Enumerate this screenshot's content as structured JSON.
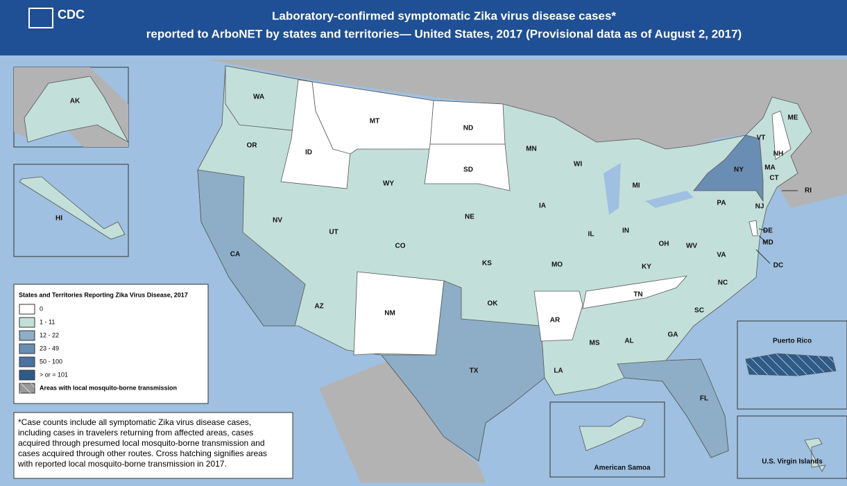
{
  "header": {
    "logo": "CDC",
    "title_lines": [
      "Laboratory-confirmed symptomatic Zika virus disease cases*",
      "reported to ArboNET by states and territories— United States, 2017 (Provisional data as of August 2, 2017)"
    ]
  },
  "legend": {
    "title": "States and Territories Reporting Zika Virus Disease, 2017",
    "items": [
      {
        "label": "0",
        "color": "#ffffff"
      },
      {
        "label": "1 - 11",
        "color": "#c3dfd9"
      },
      {
        "label": "12 - 22",
        "color": "#8daec6"
      },
      {
        "label": "23 - 49",
        "color": "#6a8db3"
      },
      {
        "label": "50 - 100",
        "color": "#4b72a0"
      },
      {
        "label": "> or = 101",
        "color": "#2f5b87"
      }
    ],
    "hatch_label": "Areas with local mosquito-borne transmission"
  },
  "note_lines": [
    "*Case counts include all symptomatic Zika virus disease cases,",
    "including cases in travelers returning from affected areas, cases",
    "acquired through presumed local mosquito-borne transmission and",
    "cases acquired through other routes. Cross hatching signifies areas",
    "with reported local mosquito-borne transmission in 2017."
  ],
  "states": [
    {
      "label": "WA",
      "range": "1 - 11"
    },
    {
      "label": "OR",
      "range": "1 - 11"
    },
    {
      "label": "CA",
      "range": "12 - 22"
    },
    {
      "label": "NV",
      "range": "1 - 11"
    },
    {
      "label": "ID",
      "range": "0"
    },
    {
      "label": "MT",
      "range": "0"
    },
    {
      "label": "WY",
      "range": "1 - 11"
    },
    {
      "label": "UT",
      "range": "1 - 11"
    },
    {
      "label": "AZ",
      "range": "1 - 11"
    },
    {
      "label": "CO",
      "range": "1 - 11"
    },
    {
      "label": "NM",
      "range": "0"
    },
    {
      "label": "ND",
      "range": "0"
    },
    {
      "label": "SD",
      "range": "0"
    },
    {
      "label": "NE",
      "range": "1 - 11"
    },
    {
      "label": "KS",
      "range": "1 - 11"
    },
    {
      "label": "OK",
      "range": "1 - 11"
    },
    {
      "label": "TX",
      "range": "12 - 22"
    },
    {
      "label": "MN",
      "range": "1 - 11"
    },
    {
      "label": "IA",
      "range": "1 - 11"
    },
    {
      "label": "MO",
      "range": "1 - 11"
    },
    {
      "label": "AR",
      "range": "0"
    },
    {
      "label": "LA",
      "range": "1 - 11"
    },
    {
      "label": "WI",
      "range": "1 - 11"
    },
    {
      "label": "IL",
      "range": "1 - 11"
    },
    {
      "label": "MI",
      "range": "1 - 11"
    },
    {
      "label": "IN",
      "range": "1 - 11"
    },
    {
      "label": "OH",
      "range": "1 - 11"
    },
    {
      "label": "KY",
      "range": "1 - 11"
    },
    {
      "label": "TN",
      "range": "0"
    },
    {
      "label": "MS",
      "range": "1 - 11"
    },
    {
      "label": "AL",
      "range": "1 - 11"
    },
    {
      "label": "GA",
      "range": "1 - 11"
    },
    {
      "label": "FL",
      "range": "12 - 22"
    },
    {
      "label": "SC",
      "range": "1 - 11"
    },
    {
      "label": "NC",
      "range": "1 - 11"
    },
    {
      "label": "VA",
      "range": "1 - 11"
    },
    {
      "label": "WV",
      "range": "1 - 11"
    },
    {
      "label": "PA",
      "range": "1 - 11"
    },
    {
      "label": "NY",
      "range": "23 - 49"
    },
    {
      "label": "VT",
      "range": "1 - 11"
    },
    {
      "label": "NH",
      "range": "0"
    },
    {
      "label": "ME",
      "range": "1 - 11"
    },
    {
      "label": "MA",
      "range": "1 - 11"
    },
    {
      "label": "CT",
      "range": "1 - 11"
    },
    {
      "label": "RI",
      "range": "1 - 11"
    },
    {
      "label": "NJ",
      "range": "1 - 11"
    },
    {
      "label": "DE",
      "range": "0"
    },
    {
      "label": "MD",
      "range": "1 - 11"
    },
    {
      "label": "DC",
      "range": "1 - 11"
    },
    {
      "label": "AK",
      "range": "1 - 11"
    },
    {
      "label": "HI",
      "range": "1 - 11"
    },
    {
      "label": "Puerto Rico",
      "range": "> or = 101",
      "hatched": true
    },
    {
      "label": "U.S. Virgin Islands",
      "range": "1 - 11"
    },
    {
      "label": "American Samoa",
      "range": "1 - 11"
    }
  ]
}
